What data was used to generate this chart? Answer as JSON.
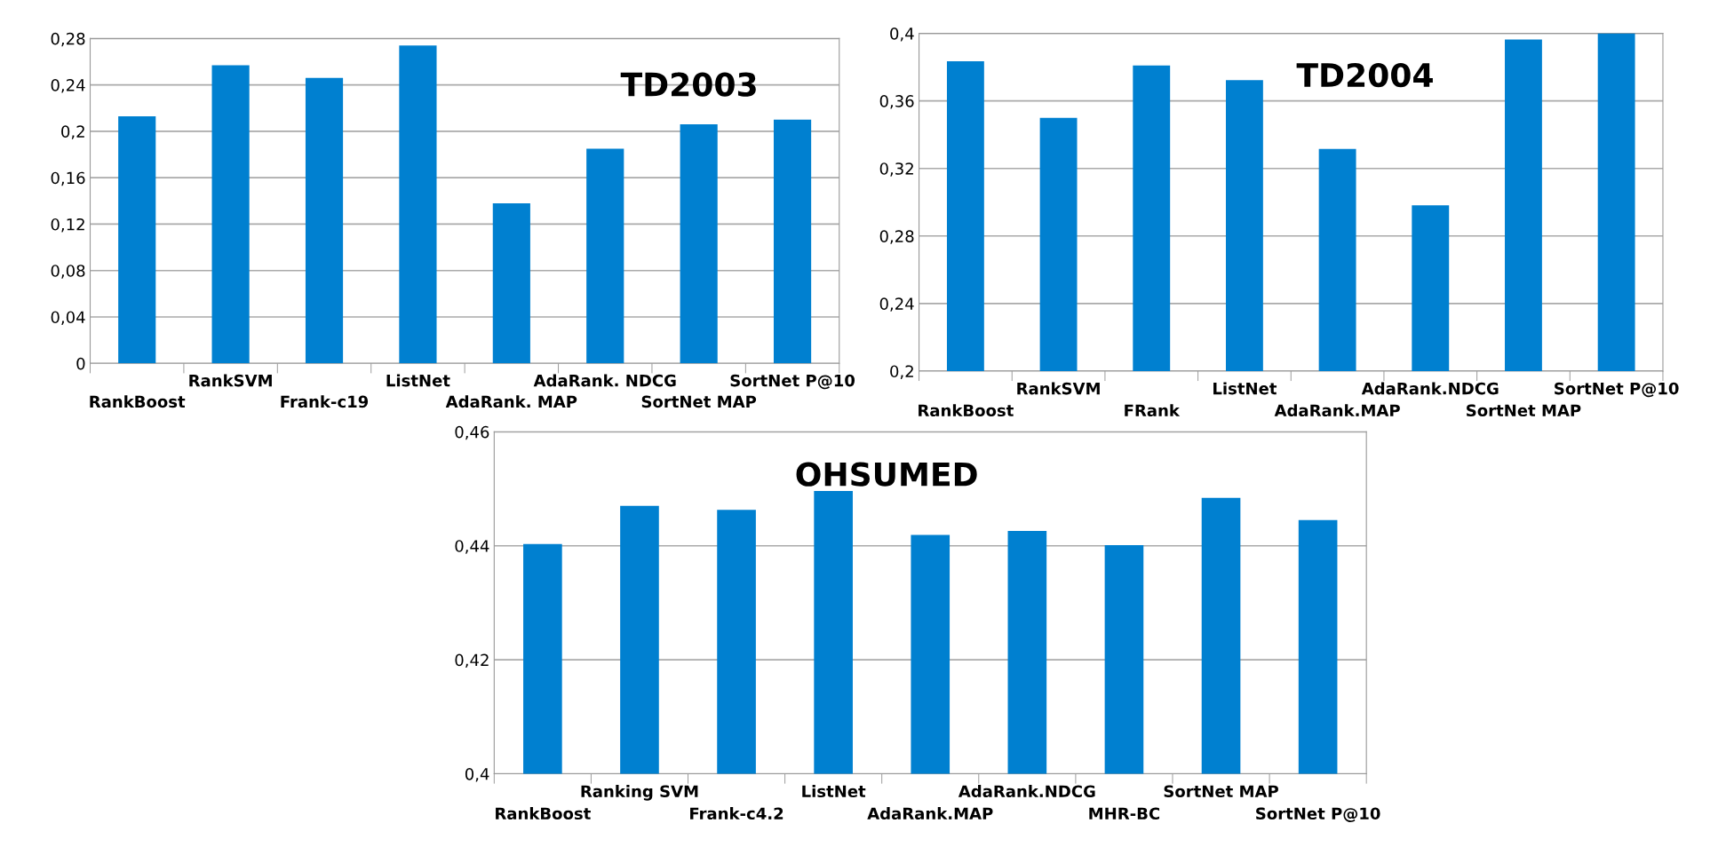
{
  "chart_data": [
    {
      "type": "bar",
      "title": "TD2003",
      "categories": [
        "RankBoost",
        "RankSVM",
        "Frank-c19",
        "ListNet",
        "AdaRank. MAP",
        "AdaRank. NDCG",
        "SortNet MAP",
        "SortNet P@10"
      ],
      "values": [
        0.213,
        0.257,
        0.246,
        0.274,
        0.138,
        0.185,
        0.206,
        0.21
      ],
      "color": "#0080d0",
      "ylim": [
        0,
        0.28
      ],
      "yticks": [
        0,
        {
          "value": 0.04,
          "label": "0,04"
        },
        {
          "value": 0.08,
          "label": "0,08"
        },
        {
          "value": 0.12,
          "label": "0,12"
        },
        {
          "value": 0.16,
          "label": "0,16"
        },
        {
          "value": 0.2,
          "label": "0,2"
        },
        {
          "value": 0.24,
          "label": "0,24"
        },
        {
          "value": 0.28,
          "label": "0,28"
        }
      ],
      "grid": "y"
    },
    {
      "type": "bar",
      "title": "TD2004",
      "categories": [
        "RankBoost",
        "RankSVM",
        "FRank",
        "ListNet",
        "AdaRank.MAP",
        "AdaRank.NDCG",
        "SortNet MAP",
        "SortNet P@10"
      ],
      "values": [
        0.3835,
        0.35,
        0.381,
        0.3723,
        0.3315,
        0.2982,
        0.3964,
        0.4
      ],
      "color": "#0080d0",
      "ylim": [
        0.2,
        0.4
      ],
      "yticks": [
        {
          "value": 0.2,
          "label": "0,2"
        },
        {
          "value": 0.24,
          "label": "0,24"
        },
        {
          "value": 0.28,
          "label": "0,28"
        },
        {
          "value": 0.32,
          "label": "0,32"
        },
        {
          "value": 0.36,
          "label": "0,36"
        },
        {
          "value": 0.4,
          "label": "0,4"
        }
      ],
      "grid": "y"
    },
    {
      "type": "bar",
      "title": "OHSUMED",
      "categories": [
        "RankBoost",
        "Ranking SVM",
        "Frank-c4.2",
        "ListNet",
        "AdaRank.MAP",
        "AdaRank.NDCG",
        "MHR-BC",
        "SortNet MAP",
        "SortNet P@10"
      ],
      "values": [
        0.4403,
        0.447,
        0.4463,
        0.4496,
        0.4419,
        0.4426,
        0.4401,
        0.4484,
        0.4445
      ],
      "color": "#0080d0",
      "ylim": [
        0.4,
        0.46
      ],
      "yticks": [
        {
          "value": 0.4,
          "label": "0,4"
        },
        {
          "value": 0.42,
          "label": "0,42"
        },
        {
          "value": 0.44,
          "label": "0,44"
        },
        {
          "value": 0.46,
          "label": "0,46"
        }
      ],
      "grid": "y"
    }
  ]
}
